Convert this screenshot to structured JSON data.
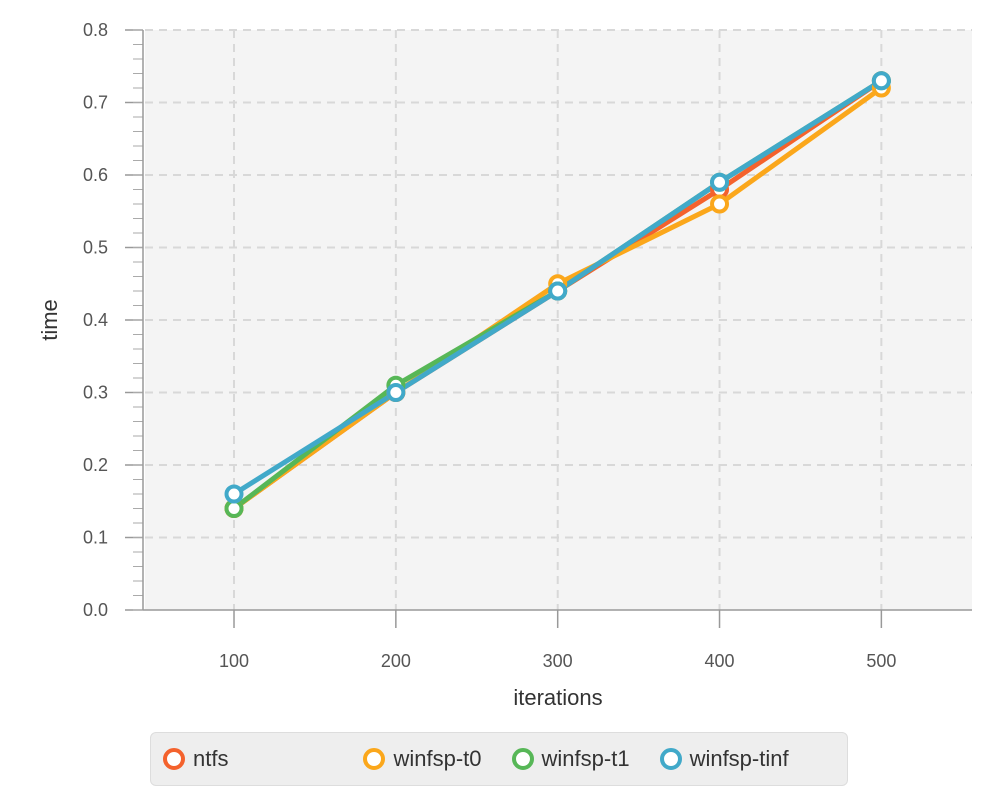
{
  "chart_data": {
    "type": "line",
    "xlabel": "iterations",
    "ylabel": "time",
    "x": [
      100,
      200,
      300,
      400,
      500
    ],
    "xlim": [
      45,
      556
    ],
    "ylim": [
      0,
      0.8
    ],
    "xticks": [
      "100",
      "200",
      "300",
      "400",
      "500"
    ],
    "yticks": [
      "0.0",
      "0.1",
      "0.2",
      "0.3",
      "0.4",
      "0.5",
      "0.6",
      "0.7",
      "0.8"
    ],
    "grid": true,
    "legend_position": "bottom",
    "series": [
      {
        "name": "ntfs",
        "color": "#f4622d",
        "values": [
          0.14,
          0.3,
          0.44,
          0.58,
          0.73
        ]
      },
      {
        "name": "winfsp-t0",
        "color": "#fba71b",
        "values": [
          0.14,
          0.3,
          0.45,
          0.56,
          0.72
        ]
      },
      {
        "name": "winfsp-t1",
        "color": "#57b757",
        "values": [
          0.14,
          0.31,
          0.44,
          0.59,
          0.73
        ]
      },
      {
        "name": "winfsp-tinf",
        "color": "#41a9c9",
        "values": [
          0.16,
          0.3,
          0.44,
          0.59,
          0.73
        ]
      }
    ]
  }
}
